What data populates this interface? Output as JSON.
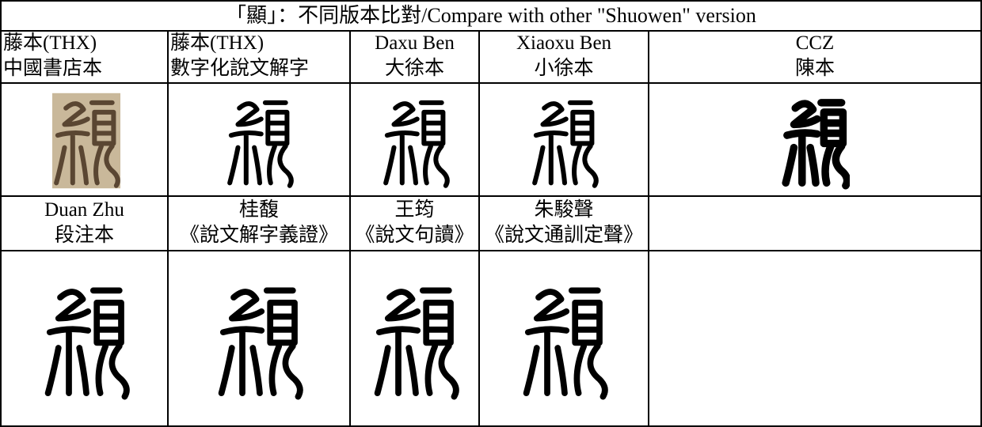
{
  "title": "「顯」：不同版本比對/Compare with other \"Shuowen\" version",
  "table": {
    "rows": [
      [
        [
          "藤本(THX)",
          "中國書店本"
        ],
        [
          "藤本(THX)",
          "數字化說文解字"
        ],
        [
          "Daxu Ben",
          "大徐本"
        ],
        [
          "Xiaoxu Ben",
          "小徐本"
        ],
        [
          "CCZ",
          "陳本"
        ]
      ],
      [
        [
          "Duan Zhu",
          "段注本"
        ],
        [
          "桂馥",
          "《說文解字義證》"
        ],
        [
          "王筠",
          "《說文句讀》"
        ],
        [
          "朱駿聲",
          "《說文通訓定聲》"
        ]
      ]
    ]
  }
}
